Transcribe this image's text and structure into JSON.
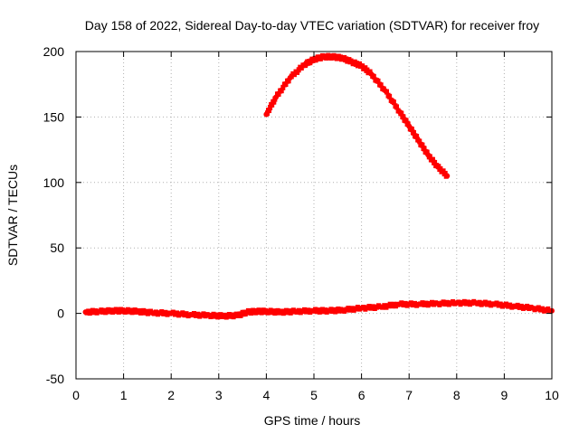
{
  "chart_data": {
    "type": "scatter",
    "title": "Day 158 of 2022, Sidereal Day-to-day VTEC variation (SDTVAR) for receiver froy",
    "xlabel": "GPS time / hours",
    "ylabel": "SDTVAR / TECUs",
    "xlim": [
      0,
      10
    ],
    "ylim": [
      -50,
      200
    ],
    "xticks": [
      0,
      1,
      2,
      3,
      4,
      5,
      6,
      7,
      8,
      9,
      10
    ],
    "yticks": [
      -50,
      0,
      50,
      100,
      150,
      200
    ],
    "grid": true,
    "series_color": "#ff0000",
    "series": [
      {
        "values": [
          [
            4.0,
            152
          ],
          [
            4.2,
            165
          ],
          [
            4.5,
            180
          ],
          [
            4.8,
            190
          ],
          [
            5.0,
            194
          ],
          [
            5.2,
            196
          ],
          [
            5.4,
            196
          ],
          [
            5.6,
            195
          ],
          [
            5.8,
            192
          ],
          [
            6.0,
            189
          ],
          [
            6.2,
            183
          ],
          [
            6.5,
            170
          ],
          [
            6.8,
            154
          ],
          [
            7.0,
            143
          ],
          [
            7.2,
            132
          ],
          [
            7.4,
            121
          ],
          [
            7.6,
            112
          ],
          [
            7.8,
            105
          ]
        ]
      },
      {
        "values": [
          [
            0.2,
            1
          ],
          [
            0.5,
            1.5
          ],
          [
            0.8,
            2
          ],
          [
            1.0,
            2
          ],
          [
            1.3,
            1.5
          ],
          [
            1.6,
            0.5
          ],
          [
            2.0,
            0
          ],
          [
            2.4,
            -1
          ],
          [
            2.8,
            -1.5
          ],
          [
            3.1,
            -2
          ],
          [
            3.4,
            -1.5
          ],
          [
            3.6,
            1
          ],
          [
            3.8,
            1.5
          ],
          [
            4.0,
            1.5
          ],
          [
            4.3,
            1
          ],
          [
            4.6,
            1.5
          ],
          [
            5.0,
            2
          ],
          [
            5.3,
            2
          ],
          [
            5.6,
            2.5
          ],
          [
            6.0,
            4
          ],
          [
            6.4,
            5
          ],
          [
            6.8,
            7
          ],
          [
            7.2,
            7
          ],
          [
            7.6,
            7.5
          ],
          [
            8.0,
            8
          ],
          [
            8.4,
            8
          ],
          [
            8.8,
            7
          ],
          [
            9.2,
            5.5
          ],
          [
            9.6,
            4
          ],
          [
            10.0,
            2
          ]
        ]
      }
    ]
  }
}
